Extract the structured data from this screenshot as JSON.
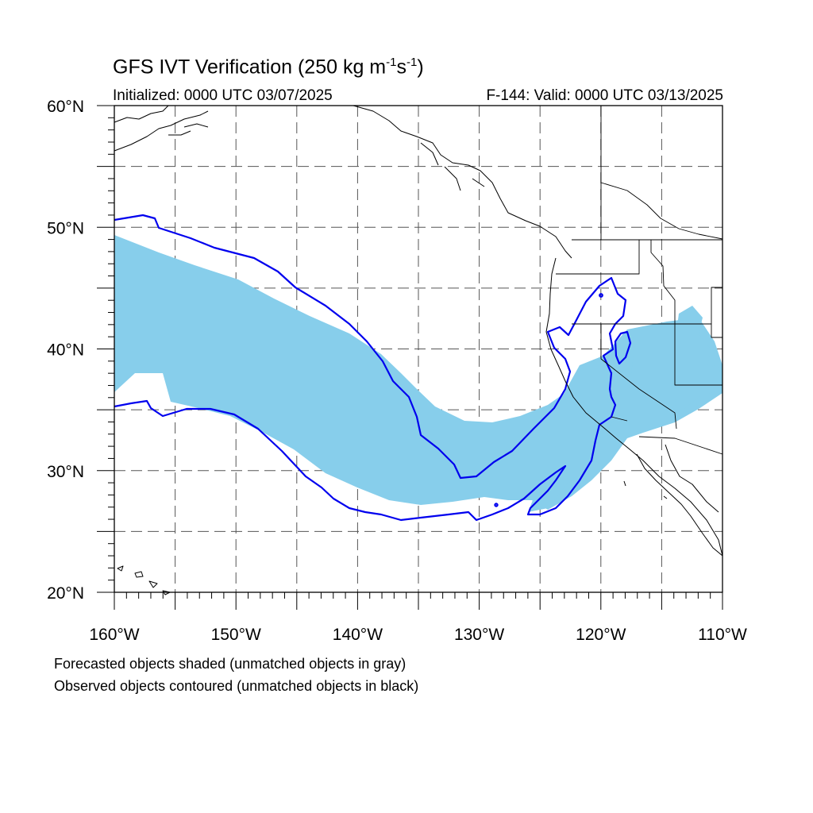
{
  "title": {
    "main": "GFS IVT Verification (250 kg m",
    "sup1": "-1",
    "mid": "s",
    "sup2": "-1",
    "end": ")"
  },
  "initialized": "Initialized: 0000 UTC 03/07/2025",
  "valid": "F-144: Valid: 0000 UTC 03/13/2025",
  "map": {
    "lon_range": [
      -160,
      -110
    ],
    "lat_range": [
      20,
      60
    ],
    "lon_ticks": [
      "160°W",
      "150°W",
      "140°W",
      "130°W",
      "120°W",
      "110°W"
    ],
    "lat_ticks": [
      "20°N",
      "30°N",
      "40°N",
      "50°N",
      "60°N"
    ],
    "gridlines": "dashed every 5°",
    "forecast_fill_color": "#87ceeb",
    "observed_contour_color": "#0000ee",
    "coastline_color": "#000000"
  },
  "footnotes": {
    "forecast": "Forecasted objects shaded (unmatched objects in gray)",
    "observed": "Observed objects contoured (unmatched objects in black)"
  }
}
